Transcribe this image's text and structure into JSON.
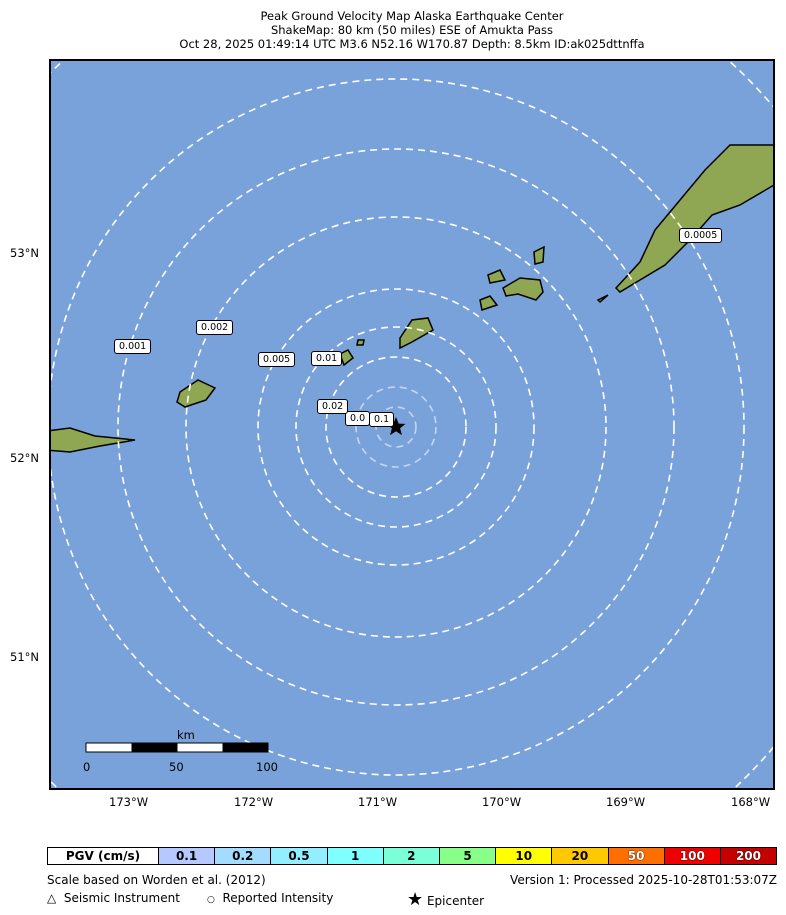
{
  "title": {
    "line1": "Peak Ground Velocity Map Alaska Earthquake Center",
    "line2": "ShakeMap: 80 km (50 miles) ESE of Amukta Pass",
    "line3": "Oct 28, 2025 01:49:14 UTC M3.6 N52.16 W170.87 Depth: 8.5km ID:ak025dttnffa"
  },
  "map": {
    "ocean_color": "#7aa2da",
    "lat_ticks": [
      "53°N",
      "52°N",
      "51°N"
    ],
    "lon_ticks": [
      "173°W",
      "172°W",
      "171°W",
      "170°W",
      "169°W",
      "168°W"
    ],
    "contour_labels": [
      "0.1",
      "0.0",
      "0.02",
      "0.01",
      "0.005",
      "0.002",
      "0.001",
      "0.0005"
    ],
    "scale_bar": {
      "unit": "km",
      "labels": [
        "0",
        "50",
        "100"
      ]
    },
    "epicenter_icon": "star-icon"
  },
  "legend": {
    "header": "PGV (cm/s)",
    "bins": [
      {
        "label": "0.1",
        "color": "#b5c9ff"
      },
      {
        "label": "0.2",
        "color": "#a3dcff"
      },
      {
        "label": "0.5",
        "color": "#93efff"
      },
      {
        "label": "1",
        "color": "#80ffff"
      },
      {
        "label": "2",
        "color": "#7affd8"
      },
      {
        "label": "5",
        "color": "#88ff88"
      },
      {
        "label": "10",
        "color": "#ffff00"
      },
      {
        "label": "20",
        "color": "#ffc800"
      },
      {
        "label": "50",
        "color": "#ff6e00"
      },
      {
        "label": "100",
        "color": "#ee0000"
      },
      {
        "label": "200",
        "color": "#c40000"
      }
    ]
  },
  "footer": {
    "scale_note": "Scale based on Worden et al. (2012)",
    "version": "Version 1: Processed 2025-10-28T01:53:07Z",
    "seismic": "Seismic Instrument",
    "reported": "Reported Intensity",
    "epicenter": "Epicenter"
  }
}
